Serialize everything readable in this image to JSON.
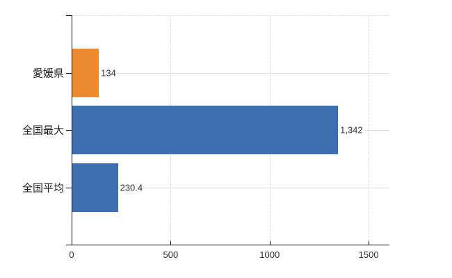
{
  "chart_data": {
    "type": "bar",
    "orientation": "horizontal",
    "title": "",
    "categories": [
      "愛媛県",
      "全国最大",
      "全国平均"
    ],
    "values": [
      134,
      1342,
      230.4
    ],
    "value_labels": [
      "134",
      "1,342",
      "230.4"
    ],
    "bar_colors": [
      "#eb8a2e",
      "#3c6eb0",
      "#3c6eb0"
    ],
    "x_ticks": [
      0,
      500,
      1000,
      1500
    ],
    "x_tick_labels": [
      "0",
      "500",
      "1000",
      "1500"
    ],
    "xlim": [
      0,
      1605
    ],
    "grid": true,
    "legend": null,
    "colors": {
      "bar_orange": "#eb8a2e",
      "bar_blue": "#3c6eb0",
      "axis": "#000000",
      "gridline": "#d9d9d9",
      "text": "#2e2e2e",
      "background": "#ffffff"
    }
  }
}
